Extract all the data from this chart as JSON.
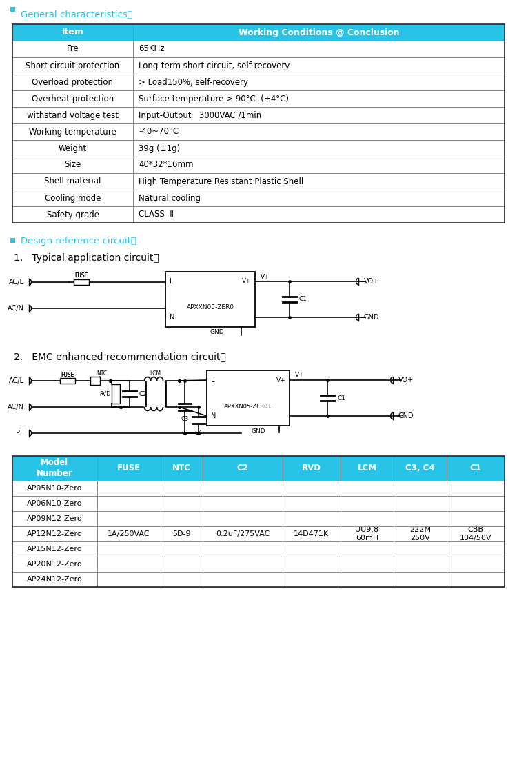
{
  "bg_color": "#ffffff",
  "cyan_color": "#29C3E8",
  "header_bg": "#29C3E8",
  "table1_headers": [
    "Item",
    "Working Conditions @ Conclusion"
  ],
  "table1_rows": [
    [
      "Fre",
      "65KHz"
    ],
    [
      "Short circuit protection",
      "Long-term short circuit, self-recovery"
    ],
    [
      "Overload protection",
      "> Load150%, self-recovery"
    ],
    [
      "Overheat protection",
      "Surface temperature > 90°C  (±4°C)"
    ],
    [
      "withstand voltage test",
      "Input-Output   3000VAC /1min"
    ],
    [
      "Working temperature",
      "-40~70°C"
    ],
    [
      "Weight",
      "39g (±1g)"
    ],
    [
      "Size",
      "40*32*16mm"
    ],
    [
      "Shell material",
      "High Temperature Resistant Plastic Shell"
    ],
    [
      "Cooling mode",
      "Natural cooling"
    ],
    [
      "Safety grade",
      "CLASS  Ⅱ"
    ]
  ],
  "table2_headers": [
    "Model\nNumber",
    "FUSE",
    "NTC",
    "C2",
    "RVD",
    "LCM",
    "C3, C4",
    "C1"
  ],
  "table2_rows": [
    [
      "AP05N10-Zero",
      "",
      "",
      "",
      "",
      "",
      "",
      ""
    ],
    [
      "AP06N10-Zero",
      "",
      "",
      "",
      "",
      "",
      "",
      ""
    ],
    [
      "AP09N12-Zero",
      "",
      "",
      "",
      "",
      "",
      "",
      ""
    ],
    [
      "AP12N12-Zero",
      "1A/250VAC",
      "5D-9",
      "0.2uF/275VAC",
      "14D471K",
      "UU9.8\n60mH",
      "222M\n250V",
      "CBB\n104/50V"
    ],
    [
      "AP15N12-Zero",
      "",
      "",
      "",
      "",
      "",
      "",
      ""
    ],
    [
      "AP20N12-Zero",
      "",
      "",
      "",
      "",
      "",
      "",
      ""
    ],
    [
      "AP24N12-Zero",
      "",
      "",
      "",
      "",
      "",
      "",
      ""
    ]
  ],
  "table2_col_widths": [
    1.6,
    1.2,
    0.8,
    1.5,
    1.1,
    1.0,
    1.0,
    1.1
  ]
}
